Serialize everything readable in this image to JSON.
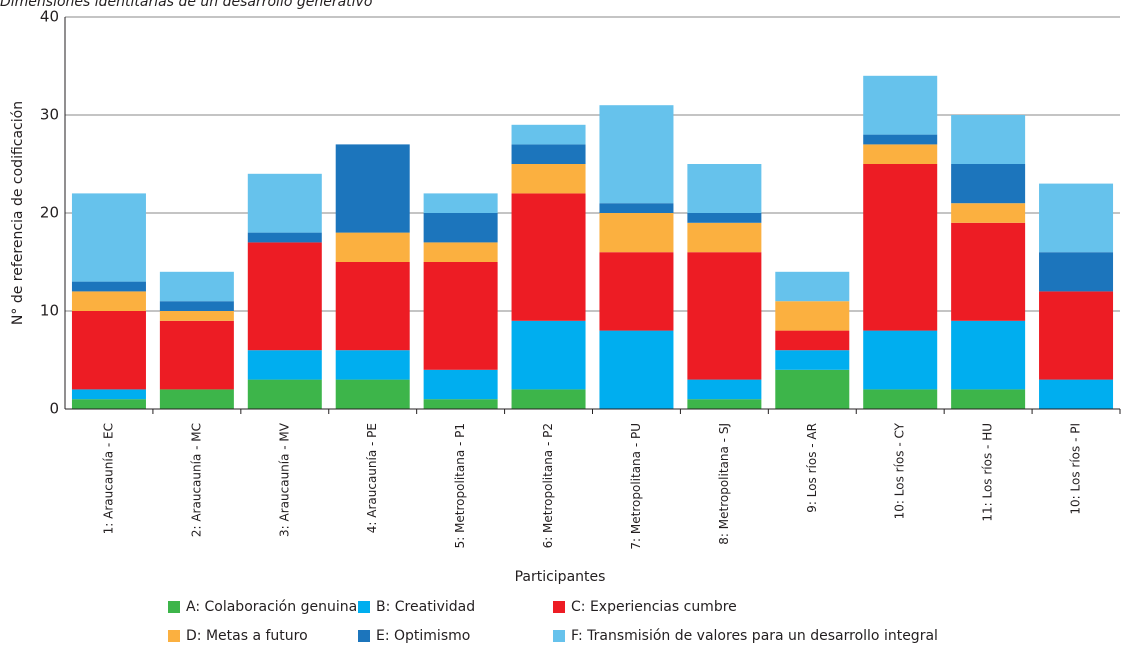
{
  "chart_data": {
    "type": "stacked_bar",
    "title": "Dimensiones identitarias de un desarrollo generativo",
    "x_label": "Participantes",
    "y_label": "N° de referencia de codificación",
    "categories": [
      "1: Araucaunía - EC",
      "2: Araucaunía - MC",
      "3: Araucaunía - MV",
      "4: Araucaunía - PE",
      "5: Metropolitana - P1",
      "6: Metropolitana - P2",
      "7: Metropolitana - PU",
      "8: Metropolitana - SJ",
      "9: Los ríos - AR",
      "10: Los ríos - CY",
      "11: Los ríos - HU",
      "10: Los ríos - PI"
    ],
    "series": [
      {
        "name": "A: Colaboración genuina",
        "color": "#3db54a",
        "values": [
          1,
          2,
          3,
          3,
          1,
          2,
          0,
          1,
          4,
          2,
          2,
          0
        ]
      },
      {
        "name": "B: Creatividad",
        "color": "#00aeef",
        "values": [
          1,
          0,
          3,
          3,
          3,
          7,
          8,
          2,
          2,
          6,
          7,
          3
        ]
      },
      {
        "name": "C: Experiencias cumbre",
        "color": "#ed1c24",
        "values": [
          8,
          7,
          11,
          9,
          11,
          13,
          8,
          13,
          2,
          17,
          10,
          9
        ]
      },
      {
        "name": "D: Metas a futuro",
        "color": "#fbb040",
        "values": [
          2,
          1,
          0,
          3,
          2,
          3,
          4,
          3,
          3,
          2,
          2,
          0
        ]
      },
      {
        "name": "E: Optimismo",
        "color": "#1c75bc",
        "values": [
          1,
          1,
          1,
          9,
          3,
          2,
          1,
          1,
          0,
          1,
          4,
          4
        ]
      },
      {
        "name": "F: Transmisión de valores para un desarrollo integral",
        "color": "#66c2ec",
        "values": [
          9,
          3,
          6,
          0,
          2,
          2,
          10,
          5,
          3,
          6,
          5,
          7
        ]
      }
    ],
    "ylim": [
      0,
      40
    ],
    "yticks": [
      0,
      10,
      20,
      30,
      40
    ],
    "grid": true
  }
}
